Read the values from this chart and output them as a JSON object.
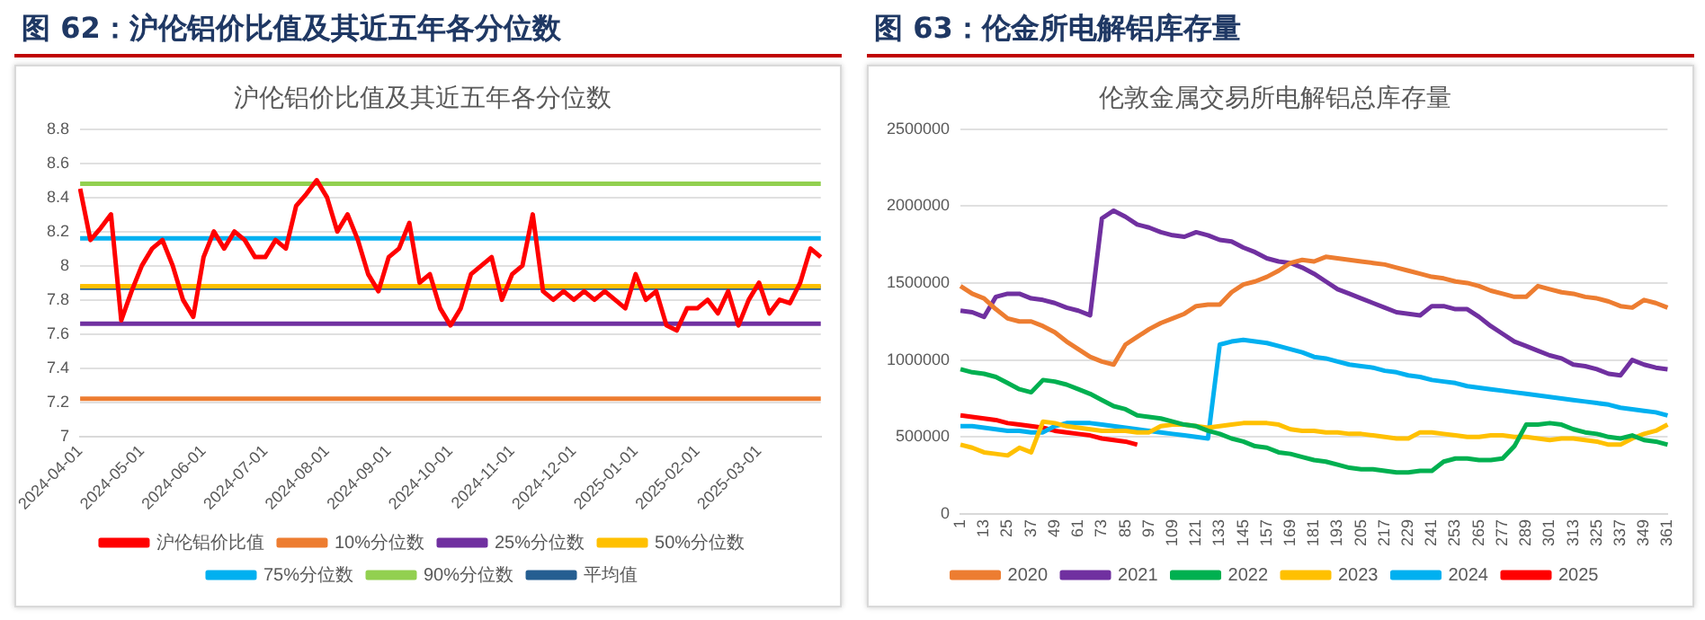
{
  "chart_data": [
    {
      "type": "line",
      "title": "图 62：沪伦铝价比值及其近五年各分位数",
      "subtitle": "沪伦铝价比值及其近五年各分位数",
      "categories": [
        "2024-04-01",
        null,
        null,
        null,
        null,
        null,
        "2024-05-01",
        null,
        null,
        null,
        null,
        null,
        "2024-06-01",
        null,
        null,
        null,
        null,
        null,
        "2024-07-01",
        null,
        null,
        null,
        null,
        null,
        "2024-08-01",
        null,
        null,
        null,
        null,
        null,
        "2024-09-01",
        null,
        null,
        null,
        null,
        null,
        "2024-10-01",
        null,
        null,
        null,
        null,
        null,
        "2024-11-01",
        null,
        null,
        null,
        null,
        null,
        "2024-12-01",
        null,
        null,
        null,
        null,
        null,
        "2025-01-01",
        null,
        null,
        null,
        null,
        null,
        "2025-02-01",
        null,
        null,
        null,
        null,
        null,
        "2025-03-01",
        null,
        null,
        null,
        null,
        null,
        null
      ],
      "series": [
        {
          "name": "沪伦铝价比值",
          "color": "#ff0000",
          "values": [
            8.45,
            8.15,
            8.22,
            8.3,
            7.68,
            7.85,
            8.0,
            8.1,
            8.15,
            8.0,
            7.8,
            7.7,
            8.05,
            8.2,
            8.1,
            8.2,
            8.15,
            8.05,
            8.05,
            8.15,
            8.1,
            8.35,
            8.42,
            8.5,
            8.4,
            8.2,
            8.3,
            8.15,
            7.95,
            7.85,
            8.05,
            8.1,
            8.25,
            7.9,
            7.95,
            7.75,
            7.65,
            7.75,
            7.95,
            8.0,
            8.05,
            7.8,
            7.95,
            8.0,
            8.3,
            7.85,
            7.8,
            7.85,
            7.8,
            7.85,
            7.8,
            7.85,
            7.8,
            7.75,
            7.95,
            7.8,
            7.85,
            7.65,
            7.62,
            7.75,
            7.75,
            7.8,
            7.72,
            7.85,
            7.65,
            7.8,
            7.9,
            7.72,
            7.8,
            7.78,
            7.9,
            8.1,
            8.05
          ]
        },
        {
          "name": "10%分位数",
          "color": "#ed7d31",
          "values": [
            7.22,
            7.22,
            7.22,
            7.22,
            7.22,
            7.22,
            7.22,
            7.22,
            7.22,
            7.22,
            7.22,
            7.22,
            7.22,
            7.22,
            7.22,
            7.22,
            7.22,
            7.22,
            7.22,
            7.22,
            7.22,
            7.22,
            7.22,
            7.22,
            7.22,
            7.22,
            7.22,
            7.22,
            7.22,
            7.22,
            7.22,
            7.22,
            7.22,
            7.22,
            7.22,
            7.22,
            7.22,
            7.22,
            7.22,
            7.22,
            7.22,
            7.22,
            7.22,
            7.22,
            7.22,
            7.22,
            7.22,
            7.22,
            7.22,
            7.22,
            7.22,
            7.22,
            7.22,
            7.22,
            7.22,
            7.22,
            7.22,
            7.22,
            7.22,
            7.22,
            7.22,
            7.22,
            7.22,
            7.22,
            7.22,
            7.22,
            7.22,
            7.22,
            7.22,
            7.22,
            7.22,
            7.22,
            7.22
          ]
        },
        {
          "name": "25%分位数",
          "color": "#7030a0",
          "values": [
            7.66,
            7.66,
            7.66,
            7.66,
            7.66,
            7.66,
            7.66,
            7.66,
            7.66,
            7.66,
            7.66,
            7.66,
            7.66,
            7.66,
            7.66,
            7.66,
            7.66,
            7.66,
            7.66,
            7.66,
            7.66,
            7.66,
            7.66,
            7.66,
            7.66,
            7.66,
            7.66,
            7.66,
            7.66,
            7.66,
            7.66,
            7.66,
            7.66,
            7.66,
            7.66,
            7.66,
            7.66,
            7.66,
            7.66,
            7.66,
            7.66,
            7.66,
            7.66,
            7.66,
            7.66,
            7.66,
            7.66,
            7.66,
            7.66,
            7.66,
            7.66,
            7.66,
            7.66,
            7.66,
            7.66,
            7.66,
            7.66,
            7.66,
            7.66,
            7.66,
            7.66,
            7.66,
            7.66,
            7.66,
            7.66,
            7.66,
            7.66,
            7.66,
            7.66,
            7.66,
            7.66,
            7.66,
            7.66
          ]
        },
        {
          "name": "50%分位数",
          "color": "#ffc000",
          "values": [
            7.88,
            7.88,
            7.88,
            7.88,
            7.88,
            7.88,
            7.88,
            7.88,
            7.88,
            7.88,
            7.88,
            7.88,
            7.88,
            7.88,
            7.88,
            7.88,
            7.88,
            7.88,
            7.88,
            7.88,
            7.88,
            7.88,
            7.88,
            7.88,
            7.88,
            7.88,
            7.88,
            7.88,
            7.88,
            7.88,
            7.88,
            7.88,
            7.88,
            7.88,
            7.88,
            7.88,
            7.88,
            7.88,
            7.88,
            7.88,
            7.88,
            7.88,
            7.88,
            7.88,
            7.88,
            7.88,
            7.88,
            7.88,
            7.88,
            7.88,
            7.88,
            7.88,
            7.88,
            7.88,
            7.88,
            7.88,
            7.88,
            7.88,
            7.88,
            7.88,
            7.88,
            7.88,
            7.88,
            7.88,
            7.88,
            7.88,
            7.88,
            7.88,
            7.88,
            7.88,
            7.88,
            7.88,
            7.88
          ]
        },
        {
          "name": "75%分位数",
          "color": "#00b0f0",
          "values": [
            8.16,
            8.16,
            8.16,
            8.16,
            8.16,
            8.16,
            8.16,
            8.16,
            8.16,
            8.16,
            8.16,
            8.16,
            8.16,
            8.16,
            8.16,
            8.16,
            8.16,
            8.16,
            8.16,
            8.16,
            8.16,
            8.16,
            8.16,
            8.16,
            8.16,
            8.16,
            8.16,
            8.16,
            8.16,
            8.16,
            8.16,
            8.16,
            8.16,
            8.16,
            8.16,
            8.16,
            8.16,
            8.16,
            8.16,
            8.16,
            8.16,
            8.16,
            8.16,
            8.16,
            8.16,
            8.16,
            8.16,
            8.16,
            8.16,
            8.16,
            8.16,
            8.16,
            8.16,
            8.16,
            8.16,
            8.16,
            8.16,
            8.16,
            8.16,
            8.16,
            8.16,
            8.16,
            8.16,
            8.16,
            8.16,
            8.16,
            8.16,
            8.16,
            8.16,
            8.16,
            8.16,
            8.16,
            8.16
          ]
        },
        {
          "name": "90%分位数",
          "color": "#92d050",
          "values": [
            8.48,
            8.48,
            8.48,
            8.48,
            8.48,
            8.48,
            8.48,
            8.48,
            8.48,
            8.48,
            8.48,
            8.48,
            8.48,
            8.48,
            8.48,
            8.48,
            8.48,
            8.48,
            8.48,
            8.48,
            8.48,
            8.48,
            8.48,
            8.48,
            8.48,
            8.48,
            8.48,
            8.48,
            8.48,
            8.48,
            8.48,
            8.48,
            8.48,
            8.48,
            8.48,
            8.48,
            8.48,
            8.48,
            8.48,
            8.48,
            8.48,
            8.48,
            8.48,
            8.48,
            8.48,
            8.48,
            8.48,
            8.48,
            8.48,
            8.48,
            8.48,
            8.48,
            8.48,
            8.48,
            8.48,
            8.48,
            8.48,
            8.48,
            8.48,
            8.48,
            8.48,
            8.48,
            8.48,
            8.48,
            8.48,
            8.48,
            8.48,
            8.48,
            8.48,
            8.48,
            8.48,
            8.48,
            8.48
          ]
        },
        {
          "name": "平均值",
          "color": "#255e91",
          "values": [
            7.87,
            7.87,
            7.87,
            7.87,
            7.87,
            7.87,
            7.87,
            7.87,
            7.87,
            7.87,
            7.87,
            7.87,
            7.87,
            7.87,
            7.87,
            7.87,
            7.87,
            7.87,
            7.87,
            7.87,
            7.87,
            7.87,
            7.87,
            7.87,
            7.87,
            7.87,
            7.87,
            7.87,
            7.87,
            7.87,
            7.87,
            7.87,
            7.87,
            7.87,
            7.87,
            7.87,
            7.87,
            7.87,
            7.87,
            7.87,
            7.87,
            7.87,
            7.87,
            7.87,
            7.87,
            7.87,
            7.87,
            7.87,
            7.87,
            7.87,
            7.87,
            7.87,
            7.87,
            7.87,
            7.87,
            7.87,
            7.87,
            7.87,
            7.87,
            7.87,
            7.87,
            7.87,
            7.87,
            7.87,
            7.87,
            7.87,
            7.87,
            7.87,
            7.87,
            7.87,
            7.87,
            7.87,
            7.87
          ]
        }
      ],
      "ylim": [
        7,
        8.8
      ],
      "yticks": [
        7,
        7.2,
        7.4,
        7.6,
        7.8,
        8,
        8.2,
        8.4,
        8.6,
        8.8
      ],
      "grid": "y",
      "legend": "bottom"
    },
    {
      "type": "line",
      "title": "图 63：伦金所电解铝库存量",
      "subtitle": "伦敦金属交易所电解铝总库存量",
      "categories": [
        "1",
        null,
        "13",
        null,
        "25",
        null,
        "37",
        null,
        "49",
        null,
        "61",
        null,
        "73",
        null,
        "85",
        null,
        "97",
        null,
        "109",
        null,
        "121",
        null,
        "133",
        null,
        "145",
        null,
        "157",
        null,
        "169",
        null,
        "181",
        null,
        "193",
        null,
        "205",
        null,
        "217",
        null,
        "229",
        null,
        "241",
        null,
        "253",
        null,
        "265",
        null,
        "277",
        null,
        "289",
        null,
        "301",
        null,
        "313",
        null,
        "325",
        null,
        "337",
        null,
        "349",
        null,
        "361"
      ],
      "series": [
        {
          "name": "2020",
          "color": "#ed7d31",
          "values": [
            1480000,
            1430000,
            1400000,
            1330000,
            1270000,
            1250000,
            1250000,
            1220000,
            1180000,
            1120000,
            1070000,
            1020000,
            990000,
            970000,
            1100000,
            1150000,
            1200000,
            1240000,
            1270000,
            1300000,
            1350000,
            1360000,
            1360000,
            1440000,
            1490000,
            1510000,
            1540000,
            1580000,
            1630000,
            1650000,
            1640000,
            1670000,
            1660000,
            1650000,
            1640000,
            1630000,
            1620000,
            1600000,
            1580000,
            1560000,
            1540000,
            1530000,
            1510000,
            1500000,
            1480000,
            1450000,
            1430000,
            1410000,
            1410000,
            1480000,
            1460000,
            1440000,
            1430000,
            1410000,
            1400000,
            1380000,
            1350000,
            1340000,
            1390000,
            1370000,
            1340000
          ]
        },
        {
          "name": "2021",
          "color": "#7030a0",
          "values": [
            1320000,
            1310000,
            1280000,
            1410000,
            1430000,
            1430000,
            1400000,
            1390000,
            1370000,
            1340000,
            1320000,
            1290000,
            1920000,
            1970000,
            1930000,
            1880000,
            1860000,
            1830000,
            1810000,
            1800000,
            1830000,
            1810000,
            1780000,
            1770000,
            1730000,
            1700000,
            1660000,
            1640000,
            1630000,
            1600000,
            1560000,
            1510000,
            1460000,
            1430000,
            1400000,
            1370000,
            1340000,
            1310000,
            1300000,
            1290000,
            1350000,
            1350000,
            1330000,
            1330000,
            1280000,
            1220000,
            1170000,
            1120000,
            1090000,
            1060000,
            1030000,
            1010000,
            970000,
            960000,
            940000,
            910000,
            900000,
            1000000,
            970000,
            950000,
            940000
          ]
        },
        {
          "name": "2022",
          "color": "#00b050",
          "values": [
            940000,
            920000,
            910000,
            890000,
            850000,
            810000,
            790000,
            870000,
            860000,
            840000,
            810000,
            780000,
            740000,
            700000,
            680000,
            640000,
            630000,
            620000,
            600000,
            580000,
            570000,
            540000,
            520000,
            490000,
            470000,
            440000,
            430000,
            400000,
            390000,
            370000,
            350000,
            340000,
            320000,
            300000,
            290000,
            290000,
            280000,
            270000,
            270000,
            280000,
            280000,
            340000,
            360000,
            360000,
            350000,
            350000,
            360000,
            440000,
            580000,
            580000,
            590000,
            580000,
            550000,
            530000,
            520000,
            500000,
            490000,
            510000,
            480000,
            470000,
            450000
          ]
        },
        {
          "name": "2023",
          "color": "#ffc000",
          "values": [
            450000,
            430000,
            400000,
            390000,
            380000,
            430000,
            400000,
            600000,
            590000,
            570000,
            560000,
            550000,
            540000,
            540000,
            540000,
            530000,
            530000,
            570000,
            580000,
            580000,
            570000,
            560000,
            570000,
            580000,
            590000,
            590000,
            590000,
            580000,
            550000,
            540000,
            540000,
            530000,
            530000,
            520000,
            520000,
            510000,
            500000,
            490000,
            490000,
            530000,
            530000,
            520000,
            510000,
            500000,
            500000,
            510000,
            510000,
            500000,
            500000,
            490000,
            480000,
            490000,
            490000,
            480000,
            470000,
            450000,
            450000,
            490000,
            520000,
            540000,
            580000
          ]
        },
        {
          "name": "2024",
          "color": "#00b0f0",
          "values": [
            570000,
            570000,
            560000,
            550000,
            540000,
            540000,
            530000,
            530000,
            570000,
            590000,
            590000,
            590000,
            580000,
            570000,
            560000,
            550000,
            540000,
            530000,
            520000,
            510000,
            500000,
            490000,
            1100000,
            1120000,
            1130000,
            1120000,
            1110000,
            1090000,
            1070000,
            1050000,
            1020000,
            1010000,
            990000,
            970000,
            960000,
            950000,
            930000,
            920000,
            900000,
            890000,
            870000,
            860000,
            850000,
            830000,
            820000,
            810000,
            800000,
            790000,
            780000,
            770000,
            760000,
            750000,
            740000,
            730000,
            720000,
            710000,
            690000,
            680000,
            670000,
            660000,
            640000
          ]
        },
        {
          "name": "2025",
          "color": "#ff0000",
          "values": [
            640000,
            630000,
            620000,
            610000,
            590000,
            580000,
            570000,
            560000,
            540000,
            530000,
            520000,
            510000,
            490000,
            480000,
            470000,
            450000,
            null,
            null,
            null,
            null,
            null,
            null,
            null,
            null,
            null,
            null,
            null,
            null,
            null,
            null,
            null,
            null,
            null,
            null,
            null,
            null,
            null,
            null,
            null,
            null,
            null,
            null,
            null,
            null,
            null,
            null,
            null,
            null,
            null,
            null,
            null,
            null,
            null,
            null,
            null,
            null,
            null,
            null,
            null,
            null,
            null
          ]
        }
      ],
      "ylim": [
        0,
        2500000
      ],
      "yticks": [
        0,
        500000,
        1000000,
        1500000,
        2000000,
        2500000
      ],
      "grid": "y",
      "legend": "bottom"
    }
  ]
}
